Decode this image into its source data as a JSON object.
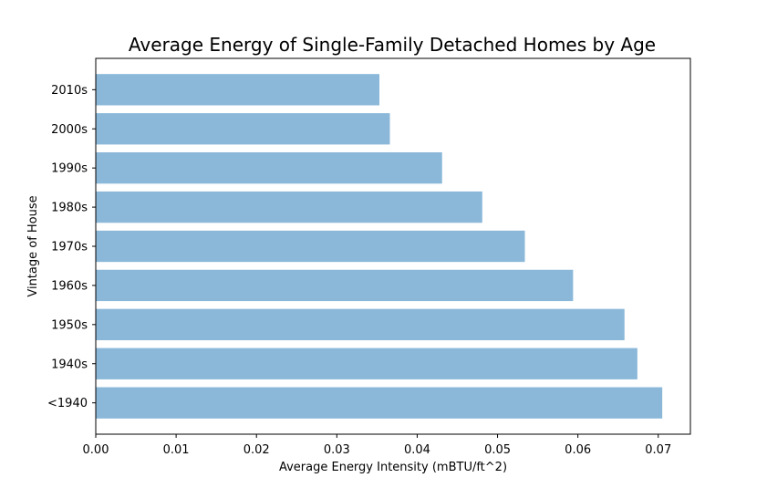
{
  "chart_data": {
    "type": "bar",
    "orientation": "horizontal",
    "title": "Average Energy of Single-Family Detached Homes by Age",
    "xlabel": "Average Energy Intensity (mBTU/ft^2)",
    "ylabel": "Vintage of House",
    "categories": [
      "2010s",
      "2000s",
      "1990s",
      "1980s",
      "1970s",
      "1960s",
      "1950s",
      "1940s",
      "<1940"
    ],
    "values": [
      0.0353,
      0.0366,
      0.0431,
      0.0481,
      0.0534,
      0.0594,
      0.0658,
      0.0674,
      0.0705
    ],
    "xlim": [
      0,
      0.074
    ],
    "xticks": [
      0.0,
      0.01,
      0.02,
      0.03,
      0.04,
      0.05,
      0.06,
      0.07
    ],
    "xtick_labels": [
      "0.00",
      "0.01",
      "0.02",
      "0.03",
      "0.04",
      "0.05",
      "0.06",
      "0.07"
    ],
    "bar_color": "#8bb8d9",
    "grid": false,
    "legend": "none"
  }
}
